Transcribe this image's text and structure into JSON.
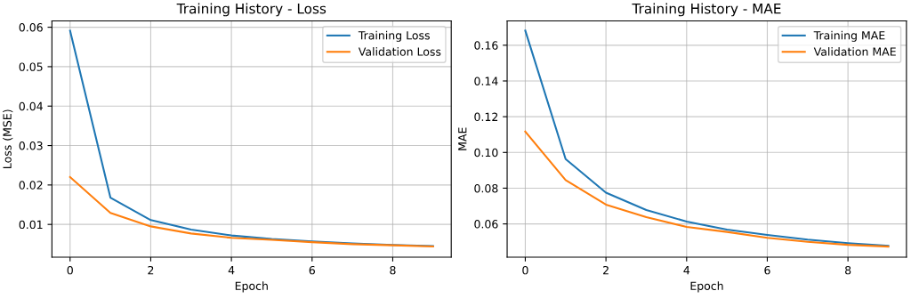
{
  "chart_data": [
    {
      "type": "line",
      "title": "Training History - Loss",
      "xlabel": "Epoch",
      "ylabel": "Loss (MSE)",
      "x": [
        0,
        1,
        2,
        3,
        4,
        5,
        6,
        7,
        8,
        9
      ],
      "series": [
        {
          "name": "Training Loss",
          "color": "#1f77b4",
          "values": [
            0.0591,
            0.0168,
            0.0111,
            0.0087,
            0.0072,
            0.0063,
            0.0057,
            0.0052,
            0.0048,
            0.0045
          ]
        },
        {
          "name": "Validation Loss",
          "color": "#ff7f0e",
          "values": [
            0.022,
            0.0129,
            0.0095,
            0.0077,
            0.0066,
            0.0061,
            0.0055,
            0.005,
            0.0047,
            0.0044
          ]
        }
      ],
      "xlim": [
        -0.45,
        9.45
      ],
      "xticks": [
        0,
        2,
        4,
        6,
        8
      ],
      "ylim": [
        0.0017,
        0.0616
      ],
      "yticks": [
        0.01,
        0.02,
        0.03,
        0.04,
        0.05,
        0.06
      ],
      "grid": true,
      "legend": "top right",
      "marker": "none",
      "line_style": "solid"
    },
    {
      "type": "line",
      "title": "Training History - MAE",
      "xlabel": "Epoch",
      "ylabel": "MAE",
      "x": [
        0,
        1,
        2,
        3,
        4,
        5,
        6,
        7,
        8,
        9
      ],
      "series": [
        {
          "name": "Training MAE",
          "color": "#1f77b4",
          "values": [
            0.1682,
            0.0963,
            0.0775,
            0.0678,
            0.0613,
            0.0568,
            0.0538,
            0.0512,
            0.0492,
            0.0477
          ]
        },
        {
          "name": "Validation MAE",
          "color": "#ff7f0e",
          "values": [
            0.1117,
            0.0845,
            0.0708,
            0.0638,
            0.0583,
            0.0555,
            0.0522,
            0.05,
            0.0483,
            0.0473
          ]
        }
      ],
      "xlim": [
        -0.45,
        9.45
      ],
      "xticks": [
        0,
        2,
        4,
        6,
        8
      ],
      "ylim": [
        0.0414,
        0.1736
      ],
      "yticks": [
        0.06,
        0.08,
        {
          "value": 0.1,
          "label": "0.10"
        },
        0.12,
        0.14,
        0.16
      ],
      "grid": true,
      "legend": "top right",
      "marker": "none",
      "line_style": "solid"
    }
  ]
}
